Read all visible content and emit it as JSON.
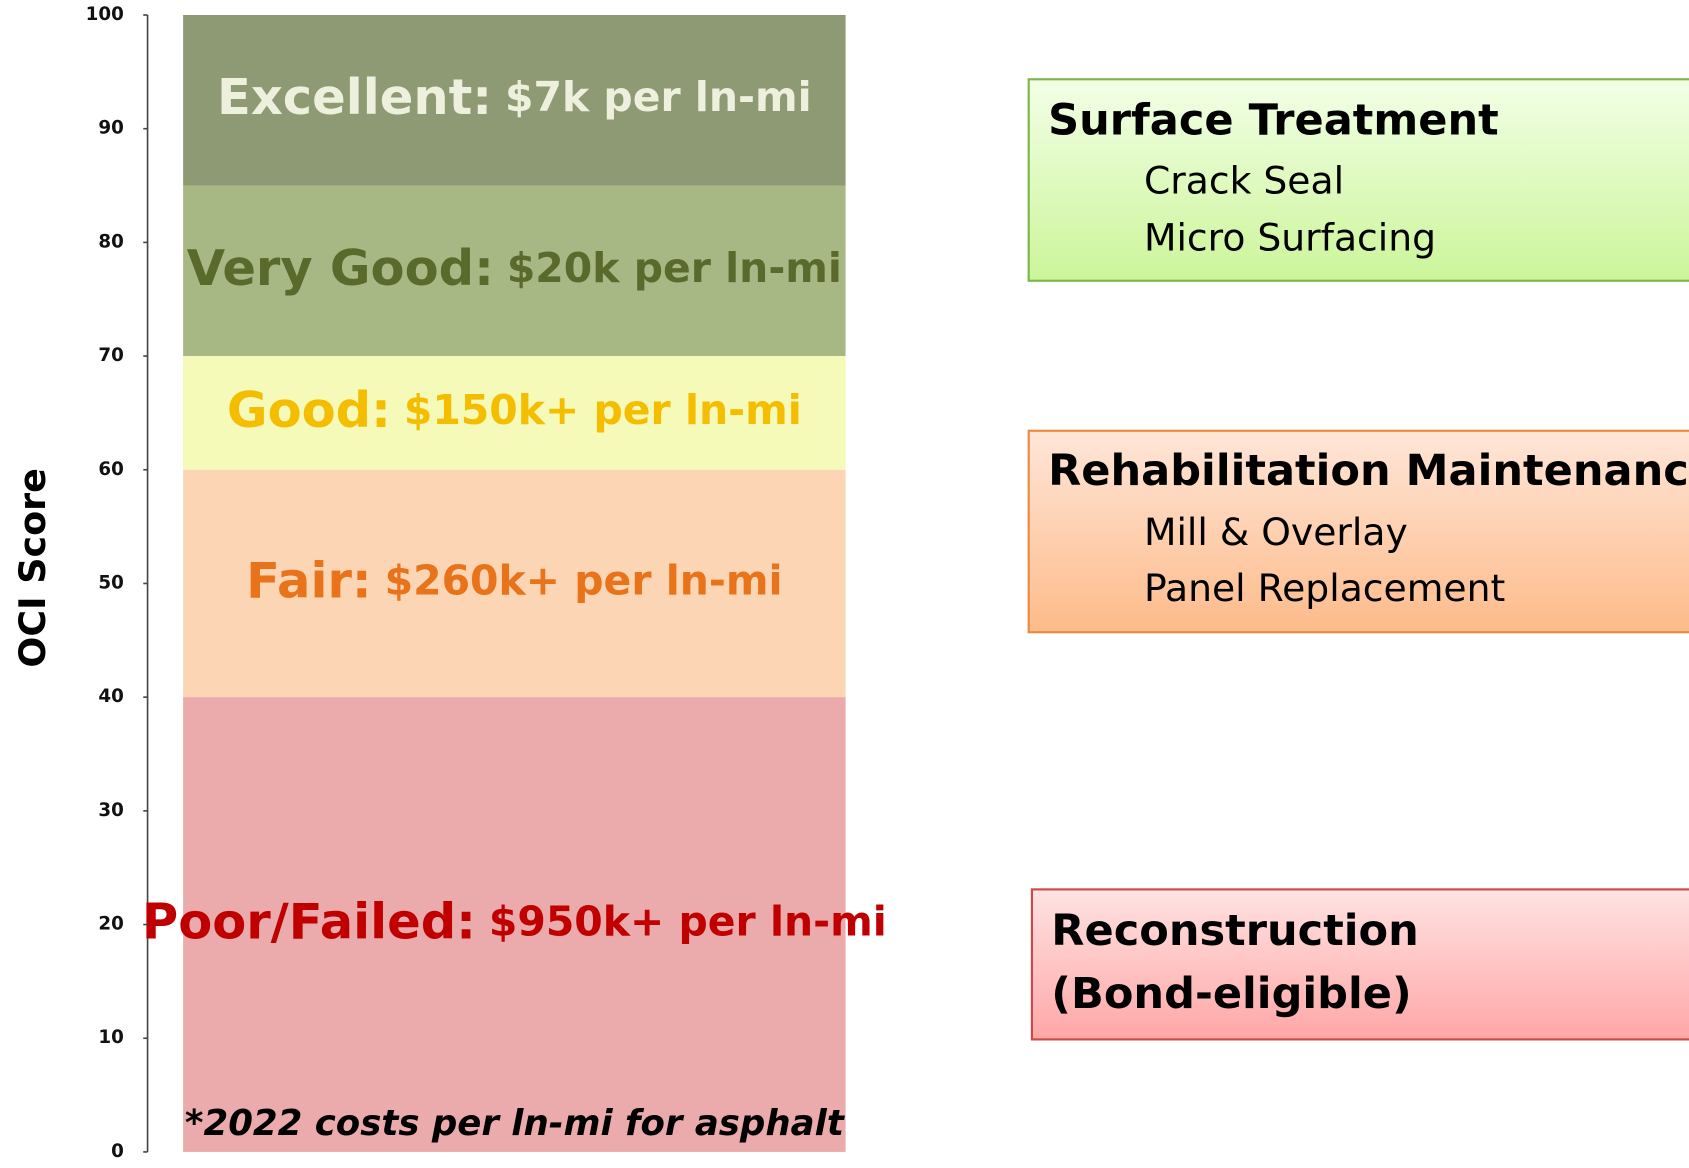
{
  "chart_data": {
    "type": "band",
    "ylabel": "OCI Score",
    "ylim": [
      0,
      100
    ],
    "yticks": [
      0,
      10,
      20,
      30,
      40,
      50,
      60,
      70,
      80,
      90,
      100
    ],
    "bands": [
      {
        "label": "Excellent:",
        "cost": "$7k per ln-mi",
        "from": 85,
        "to": 100,
        "color": "#8e9a74",
        "text_color": "#eef0de"
      },
      {
        "label": "Very Good:",
        "cost": "$20k per ln-mi",
        "from": 70,
        "to": 85,
        "color": "#a8b884",
        "text_color": "#596a2c"
      },
      {
        "label": "Good:",
        "cost": "$150k+ per ln-mi",
        "from": 60,
        "to": 70,
        "color": "#f5fab8",
        "text_color": "#f4bd00"
      },
      {
        "label": "Fair:",
        "cost": "$260k+ per ln-mi",
        "from": 40,
        "to": 60,
        "color": "#fbd5b4",
        "text_color": "#e8731a"
      },
      {
        "label": "Poor/Failed:",
        "cost": "$950k+ per ln-mi",
        "from": 0,
        "to": 40,
        "color": "#ebaaab",
        "text_color": "#c00000"
      }
    ],
    "note": "*2022 costs per ln-mi for asphalt"
  },
  "treatments": [
    {
      "title": "Surface Treatment",
      "items": [
        "Crack Seal",
        "Micro Surfacing"
      ]
    },
    {
      "title": "Rehabilitation Maintenance",
      "items": [
        "Mill & Overlay",
        "Panel Replacement"
      ]
    },
    {
      "title": "Reconstruction",
      "items": [
        "(Bond-eligible)"
      ]
    }
  ]
}
